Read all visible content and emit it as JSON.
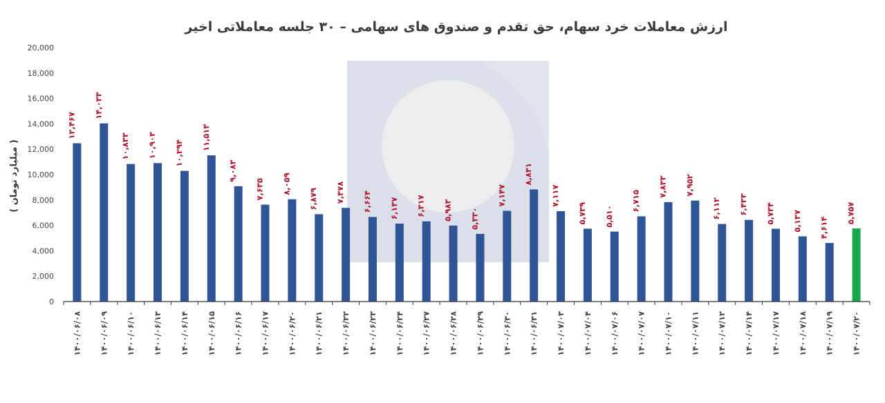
{
  "chart_data": {
    "type": "bar",
    "title": "ارزش معاملات خرد سهام، حق تقدم و صندوق های سهامی – ۳۰ جلسه معاملاتی اخیر",
    "xlabel": "",
    "ylabel": "( میلیارد تومان )",
    "ylim": [
      0,
      20000
    ],
    "yticks": [
      0,
      2000,
      4000,
      6000,
      8000,
      10000,
      12000,
      14000,
      16000,
      18000,
      20000
    ],
    "ytick_labels": [
      "0",
      "2,000",
      "4,000",
      "6,000",
      "8,000",
      "10,000",
      "12,000",
      "14,000",
      "16,000",
      "18,000",
      "20,000"
    ],
    "grid": false,
    "legend": "none",
    "categories": [
      "۱۴۰۰/۰۶/۰۸",
      "۱۴۰۰/۰۶/۰۹",
      "۱۴۰۰/۰۶/۱۰",
      "۱۴۰۰/۰۶/۱۳",
      "۱۴۰۰/۰۶/۱۴",
      "۱۴۰۰/۰۶/۱۵",
      "۱۴۰۰/۰۶/۱۶",
      "۱۴۰۰/۰۶/۱۷",
      "۱۴۰۰/۰۶/۲۰",
      "۱۴۰۰/۰۶/۲۱",
      "۱۴۰۰/۰۶/۲۲",
      "۱۴۰۰/۰۶/۲۳",
      "۱۴۰۰/۰۶/۲۴",
      "۱۴۰۰/۰۶/۲۷",
      "۱۴۰۰/۰۶/۲۸",
      "۱۴۰۰/۰۶/۲۹",
      "۱۴۰۰/۰۶/۳۰",
      "۱۴۰۰/۰۶/۳۱",
      "۱۴۰۰/۰۷/۰۳",
      "۱۴۰۰/۰۷/۰۴",
      "۱۴۰۰/۰۷/۰۶",
      "۱۴۰۰/۰۷/۰۷",
      "۱۴۰۰/۰۷/۱۰",
      "۱۴۰۰/۰۷/۱۱",
      "۱۴۰۰/۰۷/۱۲",
      "۱۴۰۰/۰۷/۱۴",
      "۱۴۰۰/۰۷/۱۷",
      "۱۴۰۰/۰۷/۱۸",
      "۱۴۰۰/۰۷/۱۹",
      "۱۴۰۰/۰۷/۲۰"
    ],
    "values": [
      12467,
      14033,
      10833,
      10903,
      10294,
      11513,
      9083,
      7635,
      8059,
      6879,
      7378,
      6664,
      6137,
      6317,
      5983,
      5330,
      7147,
      8831,
      7117,
      5739,
      5510,
      6715,
      7833,
      7952,
      6112,
      6433,
      5734,
      5137,
      4614,
      5757
    ],
    "value_labels": [
      "۱۲,۴۶۷",
      "۱۴,۰۳۳",
      "۱۰,۸۳۳",
      "۱۰,۹۰۳",
      "۱۰,۲۹۴",
      "۱۱,۵۱۳",
      "۹,۰۸۳",
      "۷,۶۳۵",
      "۸,۰۵۹",
      "۶,۸۷۹",
      "۷,۳۷۸",
      "۶,۶۶۴",
      "۶,۱۳۷",
      "۶,۳۱۷",
      "۵,۹۸۳",
      "۵,۳۳۰",
      "۷,۱۴۷",
      "۸,۸۳۱",
      "۷,۱۱۷",
      "۵,۷۳۹",
      "۵,۵۱۰",
      "۶,۷۱۵",
      "۷,۸۳۳",
      "۷,۹۵۲",
      "۶,۱۱۲",
      "۶,۴۳۳",
      "۵,۷۳۴",
      "۵,۱۳۷",
      "۴,۶۱۴",
      "۵,۷۵۷"
    ],
    "colors": {
      "bar": "#2f5596",
      "highlight_bar": "#1aa64a",
      "data_label": "#b3142b",
      "axis": "#333333",
      "watermark": "#dde2ec"
    },
    "highlight_index": 29
  }
}
